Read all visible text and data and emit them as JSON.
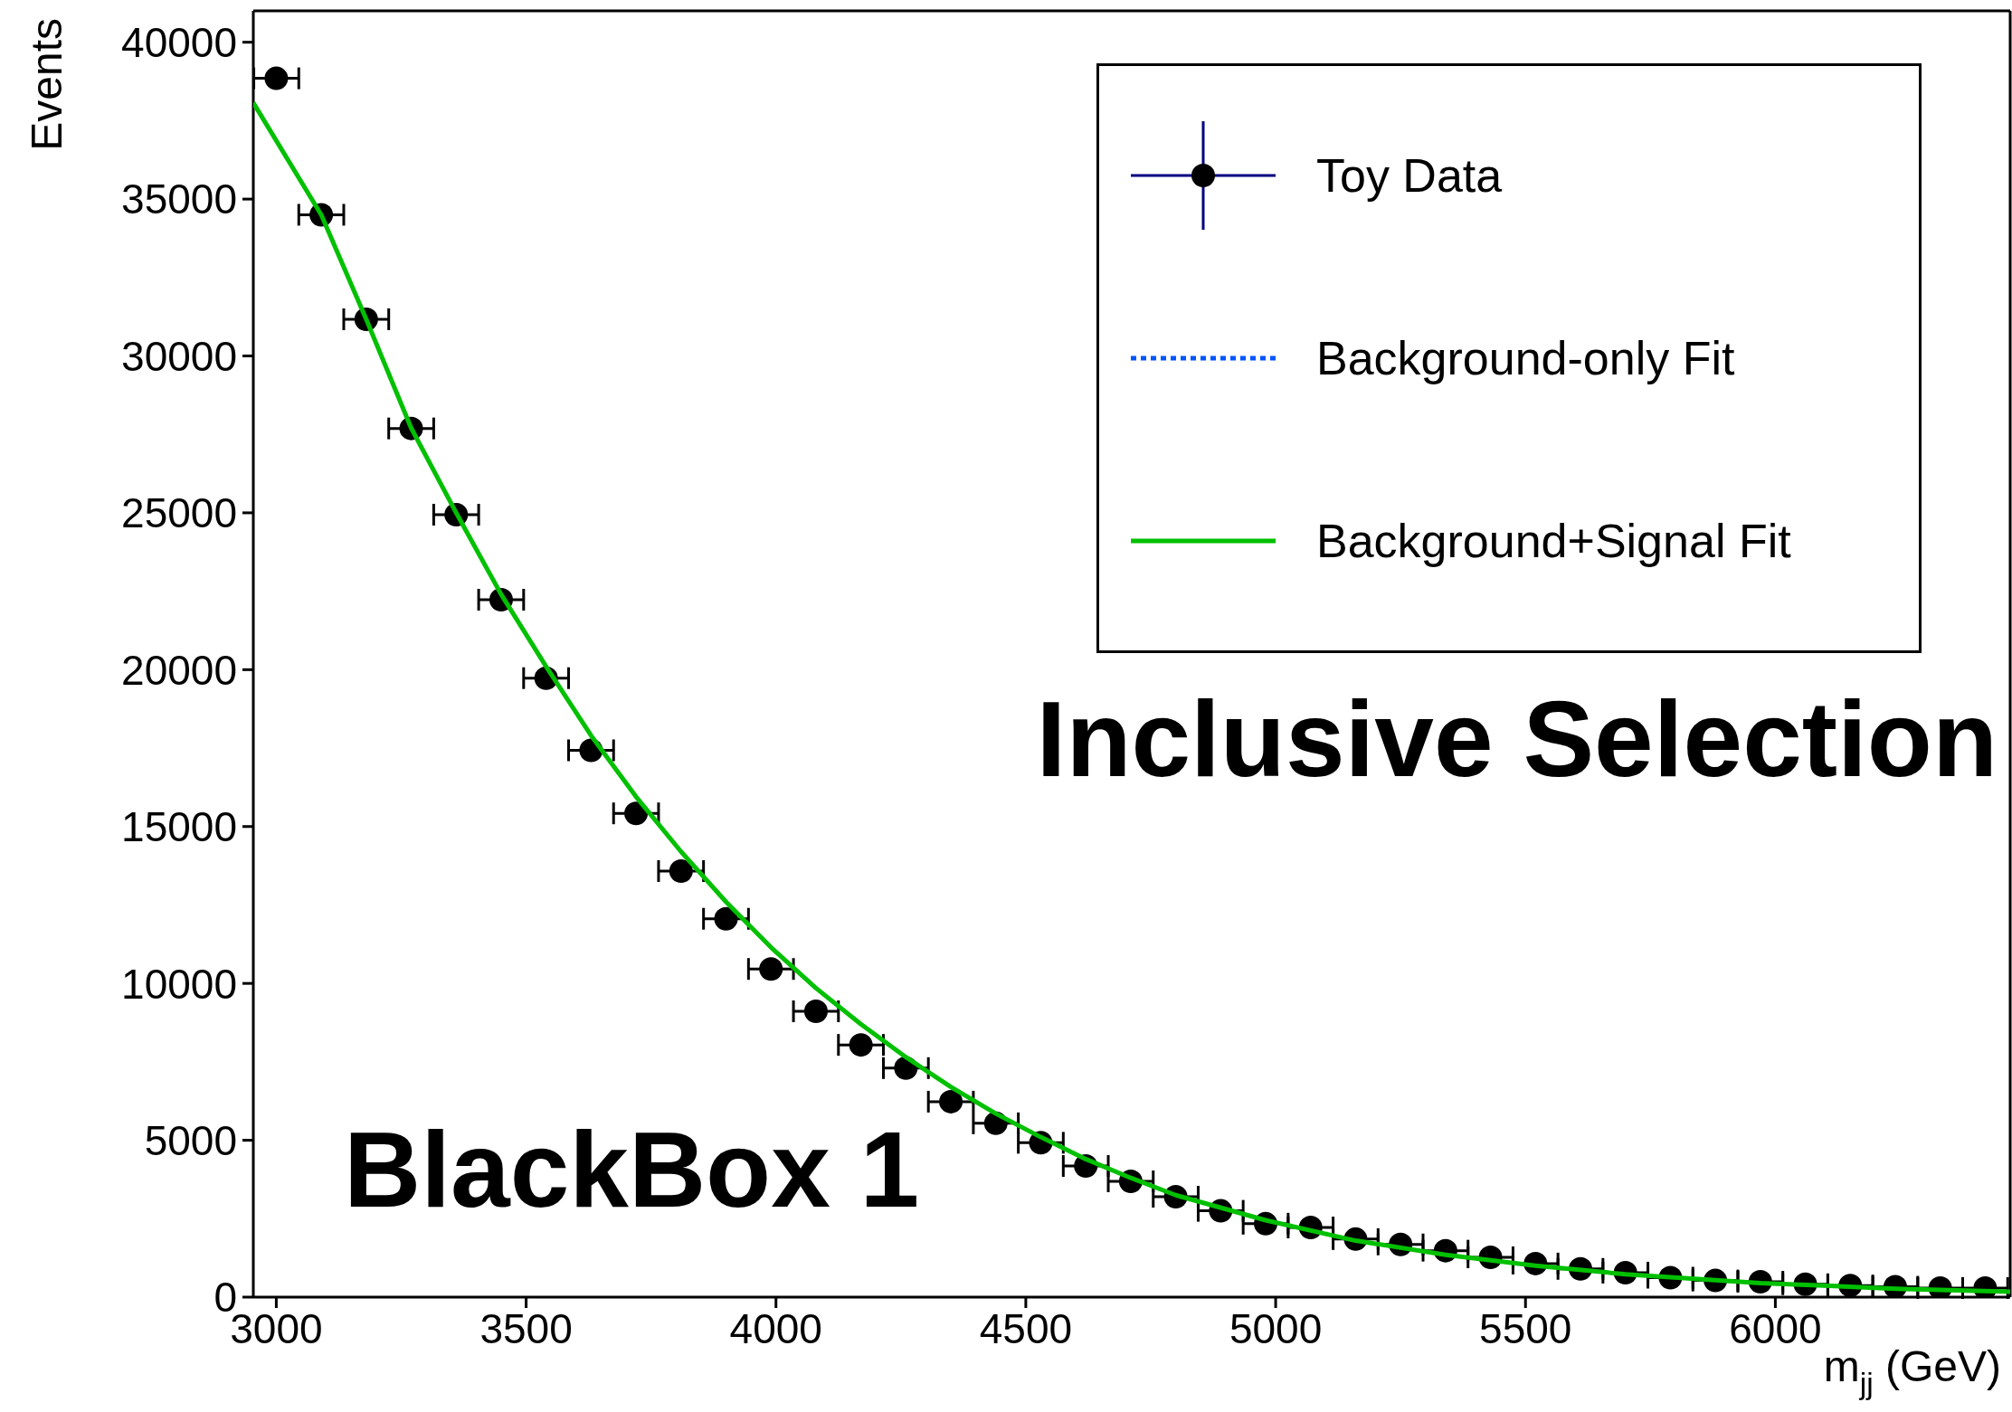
{
  "chart_data": {
    "type": "scatter",
    "xlabel": "m$_{jj}$ (GeV)",
    "ylabel": "Events",
    "xlim": [
      2954,
      6470
    ],
    "xticks": [
      3000,
      3500,
      4000,
      4500,
      5000,
      5500,
      6000
    ],
    "ylim": [
      0,
      41000
    ],
    "yticks": [
      0,
      5000,
      10000,
      15000,
      20000,
      25000,
      30000,
      35000,
      40000
    ],
    "grid": false,
    "legend": "top right",
    "marker": "circle",
    "annotations": [
      "Inclusive Selection",
      "BlackBox 1"
    ],
    "series": [
      {
        "name": "Toy Data",
        "color": "#000000",
        "x": [
          3000,
          3090,
          3180,
          3270,
          3360,
          3450,
          3540,
          3630,
          3720,
          3810,
          3900,
          3990,
          4080,
          4170,
          4260,
          4350,
          4440,
          4530,
          4620,
          4710,
          4800,
          4890,
          4980,
          5070,
          5160,
          5250,
          5340,
          5430,
          5520,
          5610,
          5700,
          5790,
          5880,
          5970,
          6060,
          6150,
          6240,
          6330,
          6420
        ],
        "values": [
          38850,
          34500,
          31170,
          27690,
          24940,
          22230,
          19730,
          17430,
          15420,
          13580,
          12060,
          10460,
          9110,
          8040,
          7300,
          6230,
          5540,
          4920,
          4180,
          3690,
          3200,
          2750,
          2340,
          2220,
          1850,
          1680,
          1480,
          1270,
          1070,
          900,
          780,
          620,
          530,
          490,
          410,
          370,
          330,
          290,
          290
        ],
        "xerrors": [
          45,
          45,
          45,
          45,
          45,
          45,
          45,
          45,
          45,
          45,
          45,
          45,
          45,
          45,
          45,
          45,
          45,
          45,
          45,
          45,
          45,
          45,
          45,
          45,
          45,
          45,
          45,
          45,
          45,
          45,
          45,
          45,
          45,
          45,
          45,
          45,
          45,
          45,
          45
        ]
      },
      {
        "name": "Background-only Fit",
        "type": "line",
        "color": "#0055ff",
        "line_style": "dotted",
        "marker": "none"
      },
      {
        "name": "Background+Signal Fit",
        "type": "line",
        "color": "#00c000",
        "line_style": "solid",
        "marker": "none",
        "x": [
          2954,
          3090,
          3180,
          3270,
          3360,
          3450,
          3540,
          3630,
          3720,
          3810,
          3900,
          3990,
          4080,
          4170,
          4260,
          4350,
          4440,
          4530,
          4620,
          4710,
          4800,
          4980,
          5160,
          5340,
          5520,
          5700,
          5970,
          6240,
          6470
        ],
        "values": [
          38070,
          34500,
          31170,
          27700,
          25000,
          22400,
          20100,
          17900,
          15950,
          14200,
          12600,
          11150,
          9850,
          8700,
          7650,
          6700,
          5850,
          5100,
          4400,
          3800,
          3250,
          2450,
          1800,
          1350,
          1000,
          730,
          450,
          270,
          170
        ]
      }
    ]
  }
}
